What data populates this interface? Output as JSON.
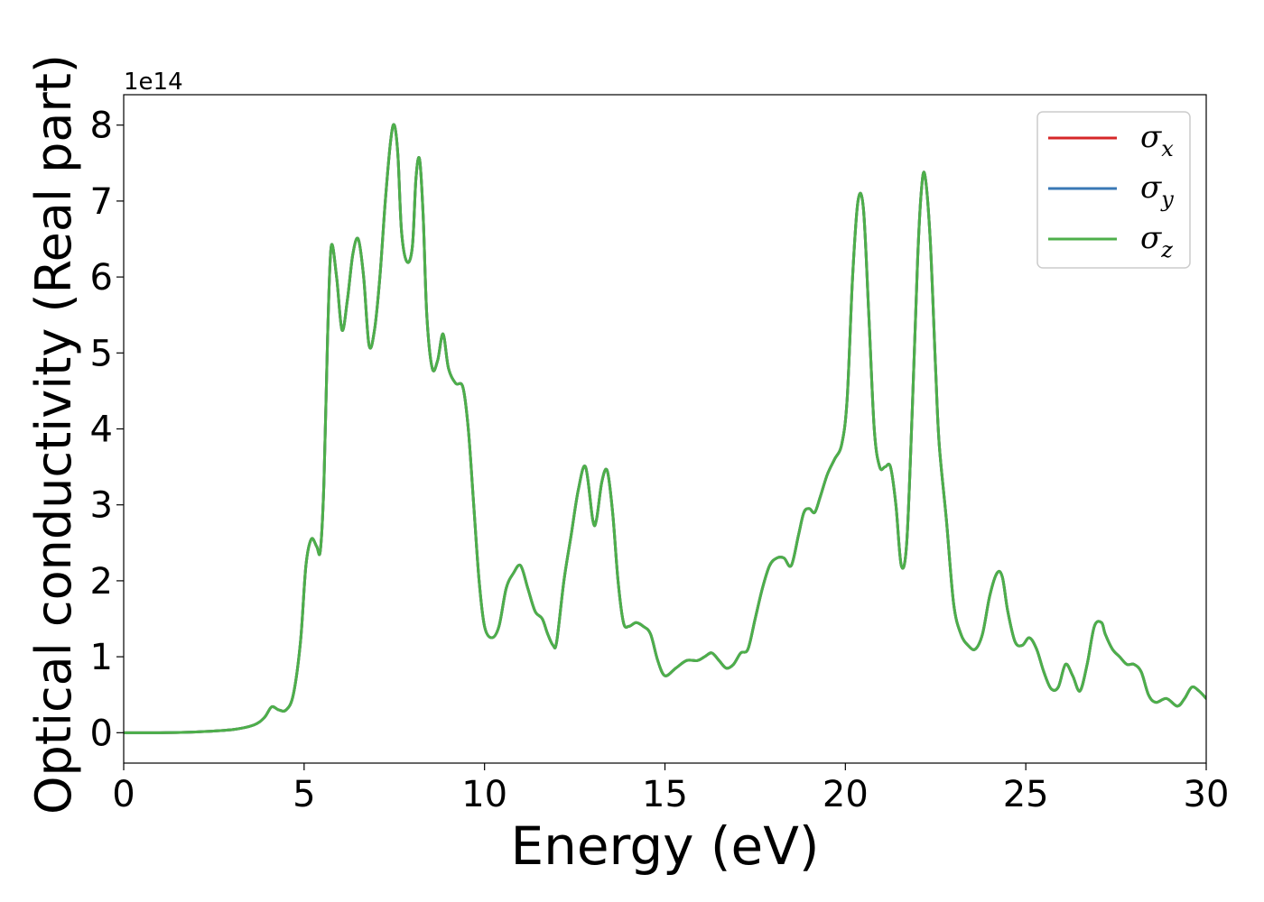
{
  "chart_data": {
    "type": "line",
    "xlabel": "Energy (eV)",
    "ylabel": "Optical conductivity (Real part)",
    "y_offset_label": "1e14",
    "xlim": [
      0,
      30
    ],
    "ylim": [
      -0.4,
      8.4
    ],
    "xticks": [
      0,
      5,
      10,
      15,
      20,
      25,
      30
    ],
    "yticks": [
      0,
      1,
      2,
      3,
      4,
      5,
      6,
      7,
      8
    ],
    "grid": false,
    "legend_position": "top-right",
    "series": [
      {
        "name": "σx",
        "label_base": "σ",
        "label_sub": "x",
        "color": "#d62728",
        "x": [
          0,
          1,
          2,
          3,
          3.6,
          3.9,
          4.1,
          4.3,
          4.5,
          4.7,
          4.9,
          5.05,
          5.2,
          5.35,
          5.45,
          5.55,
          5.65,
          5.75,
          5.9,
          6.05,
          6.2,
          6.35,
          6.5,
          6.65,
          6.8,
          6.95,
          7.1,
          7.25,
          7.4,
          7.5,
          7.6,
          7.7,
          7.85,
          8.0,
          8.1,
          8.2,
          8.3,
          8.4,
          8.55,
          8.7,
          8.85,
          9.0,
          9.2,
          9.4,
          9.55,
          9.7,
          9.85,
          10.0,
          10.2,
          10.4,
          10.6,
          10.8,
          11.0,
          11.2,
          11.4,
          11.6,
          11.75,
          11.9,
          12.0,
          12.2,
          12.4,
          12.6,
          12.8,
          13.0,
          13.1,
          13.25,
          13.4,
          13.55,
          13.7,
          13.85,
          14.0,
          14.2,
          14.4,
          14.6,
          14.8,
          15.0,
          15.3,
          15.6,
          15.9,
          16.1,
          16.3,
          16.5,
          16.7,
          16.9,
          17.1,
          17.3,
          17.5,
          17.7,
          17.9,
          18.1,
          18.3,
          18.5,
          18.7,
          18.85,
          19.0,
          19.15,
          19.3,
          19.5,
          19.7,
          19.9,
          20.05,
          20.2,
          20.35,
          20.5,
          20.65,
          20.8,
          20.95,
          21.1,
          21.25,
          21.4,
          21.55,
          21.7,
          21.85,
          22.0,
          22.1,
          22.2,
          22.35,
          22.5,
          22.6,
          22.8,
          23.0,
          23.2,
          23.4,
          23.6,
          23.8,
          24.0,
          24.2,
          24.35,
          24.5,
          24.7,
          24.9,
          25.1,
          25.3,
          25.5,
          25.7,
          25.9,
          26.1,
          26.3,
          26.5,
          26.7,
          26.9,
          27.1,
          27.2,
          27.4,
          27.6,
          27.8,
          28.0,
          28.2,
          28.4,
          28.6,
          28.9,
          29.2,
          29.4,
          29.6,
          29.8,
          30.0
        ],
        "y": [
          0.0,
          0.0,
          0.01,
          0.04,
          0.1,
          0.2,
          0.34,
          0.3,
          0.3,
          0.5,
          1.2,
          2.2,
          2.55,
          2.45,
          2.4,
          3.3,
          5.2,
          6.4,
          6.0,
          5.3,
          5.7,
          6.3,
          6.5,
          6.0,
          5.1,
          5.3,
          6.0,
          7.0,
          7.8,
          8.0,
          7.6,
          6.6,
          6.2,
          6.4,
          7.3,
          7.55,
          6.8,
          5.5,
          4.8,
          4.9,
          5.25,
          4.8,
          4.6,
          4.55,
          4.0,
          3.0,
          2.0,
          1.4,
          1.25,
          1.4,
          1.9,
          2.1,
          2.2,
          1.9,
          1.6,
          1.5,
          1.3,
          1.15,
          1.2,
          2.0,
          2.6,
          3.2,
          3.5,
          2.8,
          2.8,
          3.3,
          3.45,
          2.9,
          2.0,
          1.45,
          1.4,
          1.45,
          1.4,
          1.3,
          0.95,
          0.75,
          0.85,
          0.95,
          0.95,
          1.0,
          1.05,
          0.95,
          0.85,
          0.9,
          1.05,
          1.1,
          1.5,
          1.9,
          2.2,
          2.3,
          2.3,
          2.2,
          2.6,
          2.9,
          2.95,
          2.9,
          3.1,
          3.4,
          3.6,
          3.8,
          4.4,
          6.0,
          7.0,
          6.9,
          5.5,
          4.0,
          3.5,
          3.5,
          3.5,
          3.0,
          2.2,
          2.5,
          4.2,
          6.2,
          7.1,
          7.35,
          6.5,
          4.8,
          3.8,
          2.8,
          1.7,
          1.3,
          1.15,
          1.1,
          1.3,
          1.8,
          2.1,
          2.05,
          1.6,
          1.2,
          1.15,
          1.25,
          1.1,
          0.8,
          0.58,
          0.6,
          0.9,
          0.75,
          0.55,
          0.9,
          1.4,
          1.45,
          1.3,
          1.1,
          1.0,
          0.9,
          0.9,
          0.8,
          0.5,
          0.4,
          0.45,
          0.35,
          0.45,
          0.6,
          0.55,
          0.45
        ]
      },
      {
        "name": "σy",
        "label_base": "σ",
        "label_sub": "y",
        "color": "#3a78b5",
        "x": [
          0,
          1,
          2,
          3,
          3.6,
          3.9,
          4.1,
          4.3,
          4.5,
          4.7,
          4.9,
          5.05,
          5.2,
          5.35,
          5.45,
          5.55,
          5.65,
          5.75,
          5.9,
          6.05,
          6.2,
          6.35,
          6.5,
          6.65,
          6.8,
          6.95,
          7.1,
          7.25,
          7.4,
          7.5,
          7.6,
          7.7,
          7.85,
          8.0,
          8.1,
          8.2,
          8.3,
          8.4,
          8.55,
          8.7,
          8.85,
          9.0,
          9.2,
          9.4,
          9.55,
          9.7,
          9.85,
          10.0,
          10.2,
          10.4,
          10.6,
          10.8,
          11.0,
          11.2,
          11.4,
          11.6,
          11.75,
          11.9,
          12.0,
          12.2,
          12.4,
          12.6,
          12.8,
          13.0,
          13.1,
          13.25,
          13.4,
          13.55,
          13.7,
          13.85,
          14.0,
          14.2,
          14.4,
          14.6,
          14.8,
          15.0,
          15.3,
          15.6,
          15.9,
          16.1,
          16.3,
          16.5,
          16.7,
          16.9,
          17.1,
          17.3,
          17.5,
          17.7,
          17.9,
          18.1,
          18.3,
          18.5,
          18.7,
          18.85,
          19.0,
          19.15,
          19.3,
          19.5,
          19.7,
          19.9,
          20.05,
          20.2,
          20.35,
          20.5,
          20.65,
          20.8,
          20.95,
          21.1,
          21.25,
          21.4,
          21.55,
          21.7,
          21.85,
          22.0,
          22.1,
          22.2,
          22.35,
          22.5,
          22.6,
          22.8,
          23.0,
          23.2,
          23.4,
          23.6,
          23.8,
          24.0,
          24.2,
          24.35,
          24.5,
          24.7,
          24.9,
          25.1,
          25.3,
          25.5,
          25.7,
          25.9,
          26.1,
          26.3,
          26.5,
          26.7,
          26.9,
          27.1,
          27.2,
          27.4,
          27.6,
          27.8,
          28.0,
          28.2,
          28.4,
          28.6,
          28.9,
          29.2,
          29.4,
          29.6,
          29.8,
          30.0
        ],
        "y": [
          0.0,
          0.0,
          0.01,
          0.04,
          0.1,
          0.2,
          0.34,
          0.3,
          0.3,
          0.5,
          1.2,
          2.2,
          2.55,
          2.45,
          2.4,
          3.3,
          5.2,
          6.4,
          6.0,
          5.3,
          5.7,
          6.3,
          6.5,
          6.0,
          5.1,
          5.3,
          6.0,
          7.0,
          7.8,
          8.0,
          7.6,
          6.6,
          6.2,
          6.4,
          7.3,
          7.55,
          6.8,
          5.5,
          4.8,
          4.9,
          5.25,
          4.8,
          4.6,
          4.55,
          4.0,
          3.0,
          2.0,
          1.4,
          1.25,
          1.4,
          1.9,
          2.1,
          2.2,
          1.9,
          1.6,
          1.5,
          1.3,
          1.15,
          1.2,
          2.0,
          2.6,
          3.2,
          3.5,
          2.8,
          2.8,
          3.3,
          3.45,
          2.9,
          2.0,
          1.45,
          1.4,
          1.45,
          1.4,
          1.3,
          0.95,
          0.75,
          0.85,
          0.95,
          0.95,
          1.0,
          1.05,
          0.95,
          0.85,
          0.9,
          1.05,
          1.1,
          1.5,
          1.9,
          2.2,
          2.3,
          2.3,
          2.2,
          2.6,
          2.9,
          2.95,
          2.9,
          3.1,
          3.4,
          3.6,
          3.8,
          4.4,
          6.0,
          7.0,
          6.9,
          5.5,
          4.0,
          3.5,
          3.5,
          3.5,
          3.0,
          2.2,
          2.5,
          4.2,
          6.2,
          7.1,
          7.35,
          6.5,
          4.8,
          3.8,
          2.8,
          1.7,
          1.3,
          1.15,
          1.1,
          1.3,
          1.8,
          2.1,
          2.05,
          1.6,
          1.2,
          1.15,
          1.25,
          1.1,
          0.8,
          0.58,
          0.6,
          0.9,
          0.75,
          0.55,
          0.9,
          1.4,
          1.45,
          1.3,
          1.1,
          1.0,
          0.9,
          0.9,
          0.8,
          0.5,
          0.4,
          0.45,
          0.35,
          0.45,
          0.6,
          0.55,
          0.45
        ]
      },
      {
        "name": "σz",
        "label_base": "σ",
        "label_sub": "z",
        "color": "#4daf4a",
        "x": [
          0,
          1,
          2,
          3,
          3.6,
          3.9,
          4.1,
          4.3,
          4.5,
          4.7,
          4.9,
          5.05,
          5.2,
          5.35,
          5.45,
          5.55,
          5.65,
          5.75,
          5.9,
          6.05,
          6.2,
          6.35,
          6.5,
          6.65,
          6.8,
          6.95,
          7.1,
          7.25,
          7.4,
          7.5,
          7.6,
          7.7,
          7.85,
          8.0,
          8.1,
          8.2,
          8.3,
          8.4,
          8.55,
          8.7,
          8.85,
          9.0,
          9.2,
          9.4,
          9.55,
          9.7,
          9.85,
          10.0,
          10.2,
          10.4,
          10.6,
          10.8,
          11.0,
          11.2,
          11.4,
          11.6,
          11.75,
          11.9,
          12.0,
          12.2,
          12.4,
          12.6,
          12.8,
          13.0,
          13.1,
          13.25,
          13.4,
          13.55,
          13.7,
          13.85,
          14.0,
          14.2,
          14.4,
          14.6,
          14.8,
          15.0,
          15.3,
          15.6,
          15.9,
          16.1,
          16.3,
          16.5,
          16.7,
          16.9,
          17.1,
          17.3,
          17.5,
          17.7,
          17.9,
          18.1,
          18.3,
          18.5,
          18.7,
          18.85,
          19.0,
          19.15,
          19.3,
          19.5,
          19.7,
          19.9,
          20.05,
          20.2,
          20.35,
          20.5,
          20.65,
          20.8,
          20.95,
          21.1,
          21.25,
          21.4,
          21.55,
          21.7,
          21.85,
          22.0,
          22.1,
          22.2,
          22.35,
          22.5,
          22.6,
          22.8,
          23.0,
          23.2,
          23.4,
          23.6,
          23.8,
          24.0,
          24.2,
          24.35,
          24.5,
          24.7,
          24.9,
          25.1,
          25.3,
          25.5,
          25.7,
          25.9,
          26.1,
          26.3,
          26.5,
          26.7,
          26.9,
          27.1,
          27.2,
          27.4,
          27.6,
          27.8,
          28.0,
          28.2,
          28.4,
          28.6,
          28.9,
          29.2,
          29.4,
          29.6,
          29.8,
          30.0
        ],
        "y": [
          0.0,
          0.0,
          0.01,
          0.04,
          0.1,
          0.2,
          0.34,
          0.3,
          0.3,
          0.5,
          1.2,
          2.2,
          2.55,
          2.45,
          2.4,
          3.3,
          5.2,
          6.4,
          6.0,
          5.3,
          5.7,
          6.3,
          6.5,
          6.0,
          5.1,
          5.3,
          6.0,
          7.0,
          7.8,
          8.0,
          7.6,
          6.6,
          6.2,
          6.4,
          7.3,
          7.55,
          6.8,
          5.5,
          4.8,
          4.9,
          5.25,
          4.8,
          4.6,
          4.55,
          4.0,
          3.0,
          2.0,
          1.4,
          1.25,
          1.4,
          1.9,
          2.1,
          2.2,
          1.9,
          1.6,
          1.5,
          1.3,
          1.15,
          1.2,
          2.0,
          2.6,
          3.2,
          3.5,
          2.8,
          2.8,
          3.3,
          3.45,
          2.9,
          2.0,
          1.45,
          1.4,
          1.45,
          1.4,
          1.3,
          0.95,
          0.75,
          0.85,
          0.95,
          0.95,
          1.0,
          1.05,
          0.95,
          0.85,
          0.9,
          1.05,
          1.1,
          1.5,
          1.9,
          2.2,
          2.3,
          2.3,
          2.2,
          2.6,
          2.9,
          2.95,
          2.9,
          3.1,
          3.4,
          3.6,
          3.8,
          4.4,
          6.0,
          7.0,
          6.9,
          5.5,
          4.0,
          3.5,
          3.5,
          3.5,
          3.0,
          2.2,
          2.5,
          4.2,
          6.2,
          7.1,
          7.35,
          6.5,
          4.8,
          3.8,
          2.8,
          1.7,
          1.3,
          1.15,
          1.1,
          1.3,
          1.8,
          2.1,
          2.05,
          1.6,
          1.2,
          1.15,
          1.25,
          1.1,
          0.8,
          0.58,
          0.6,
          0.9,
          0.75,
          0.55,
          0.9,
          1.4,
          1.45,
          1.3,
          1.1,
          1.0,
          0.9,
          0.9,
          0.8,
          0.5,
          0.4,
          0.45,
          0.35,
          0.45,
          0.6,
          0.55,
          0.45
        ]
      }
    ]
  }
}
